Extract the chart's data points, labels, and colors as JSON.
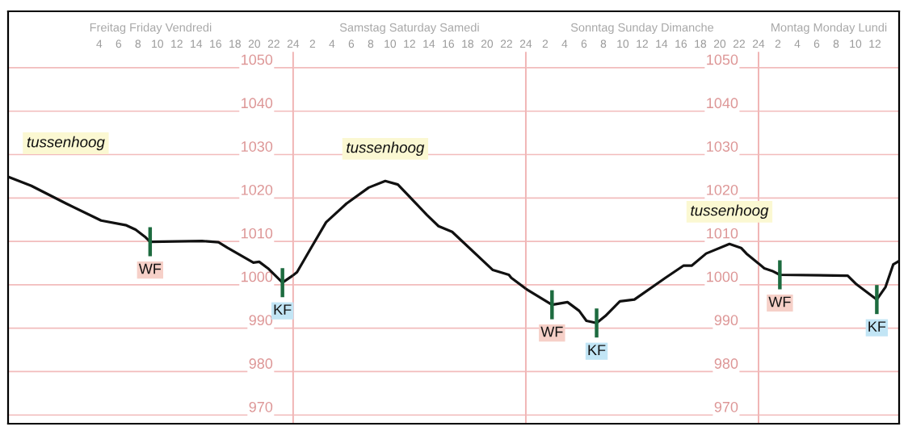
{
  "chart_data": [
    {
      "type": "line",
      "title": "Freitag Friday Vendredi",
      "xlim": [
        -5.4,
        24
      ],
      "xticks": [
        4,
        6,
        8,
        10,
        12,
        14,
        16,
        18,
        20,
        22,
        24
      ],
      "ylim": [
        968,
        1063
      ],
      "yticks": [
        970,
        980,
        990,
        1000,
        1010,
        1020,
        1030,
        1040,
        1050
      ],
      "grid": "y",
      "marker": "none",
      "line_style": "solid",
      "series": [
        {
          "color": "#111111",
          "x": [
            -5.3,
            -3.0,
            0.6,
            4.2,
            6.8,
            7.75,
            8.7,
            9.25,
            14.6,
            16.3,
            17.25,
            19.9,
            20.5,
            21.4,
            22.9,
            24
          ],
          "values": [
            1024.8,
            1022.8,
            1018.7,
            1014.8,
            1013.7,
            1012.7,
            1011.1,
            1009.9,
            1010.1,
            1009.8,
            1008.5,
            1005.1,
            1005.3,
            1003.8,
            1000.5,
            1002.2
          ]
        }
      ],
      "annotations": [
        "tussenhoog",
        {
          "text": "WF",
          "x": 9.25,
          "y": 1009.9
        },
        {
          "text": "KF",
          "x": 22.9,
          "y": 1000.5
        }
      ]
    },
    {
      "type": "line",
      "title": "Samstag Saturday Samedi",
      "xlim": [
        0,
        24
      ],
      "xticks": [
        2,
        4,
        6,
        8,
        10,
        12,
        14,
        16,
        18,
        20,
        22,
        24
      ],
      "ylim": [
        968,
        1063
      ],
      "yticks": [
        970,
        980,
        990,
        1000,
        1010,
        1020,
        1030,
        1040,
        1050
      ],
      "tick_labels": "x",
      "grid": "y",
      "marker": "none",
      "line_style": "solid",
      "series": [
        {
          "color": "#111111",
          "x": [
            0,
            0.4,
            1.75,
            3.4,
            5.5,
            7.8,
            9.5,
            10.8,
            13.8,
            15.0,
            16.4,
            20.6,
            22.25,
            22.5,
            24
          ],
          "values": [
            1002.2,
            1002.9,
            1008.1,
            1014.4,
            1018.7,
            1022.4,
            1023.9,
            1023.1,
            1016.1,
            1013.5,
            1012.2,
            1003.4,
            1002.3,
            1001.6,
            999.1
          ]
        }
      ],
      "annotations": [
        {
          "text": "tussenhoog",
          "x": 9.5,
          "y": 1023.9
        }
      ]
    },
    {
      "type": "line",
      "title": "Sonntag Sunday Dimanche",
      "xlim": [
        0,
        24
      ],
      "xticks": [
        2,
        4,
        6,
        8,
        10,
        12,
        14,
        16,
        18,
        20,
        22,
        24
      ],
      "ylim": [
        968,
        1063
      ],
      "yticks": [
        970,
        980,
        990,
        1000,
        1010,
        1020,
        1030,
        1040,
        1050
      ],
      "grid": "y",
      "marker": "none",
      "line_style": "solid",
      "series": [
        {
          "color": "#111111",
          "x": [
            0,
            0.2,
            2.7,
            4.3,
            5.5,
            6.25,
            7.3,
            8.2,
            9.7,
            11.2,
            14.4,
            16.25,
            17.1,
            18.6,
            21.0,
            22.2,
            22.75,
            24
          ],
          "values": [
            999.1,
            998.8,
            995.4,
            996.0,
            994.0,
            991.7,
            991.2,
            992.8,
            996.2,
            996.6,
            1001.6,
            1004.4,
            1004.4,
            1007.2,
            1009.4,
            1008.5,
            1007.2,
            1004.9
          ]
        }
      ],
      "annotations": [
        {
          "text": "WF",
          "x": 2.7,
          "y": 995.4
        },
        {
          "text": "KF",
          "x": 7.3,
          "y": 991.2
        },
        {
          "text": "tussenhoog",
          "x": 21.0,
          "y": 1009.4
        }
      ]
    },
    {
      "type": "line",
      "title": "Montag Monday Lundi",
      "xlim": [
        0,
        14.5
      ],
      "xticks": [
        2,
        4,
        6,
        8,
        10,
        12
      ],
      "ylim": [
        968,
        1063
      ],
      "yticks": [
        970,
        980,
        990,
        1000,
        1010,
        1020,
        1030,
        1040,
        1050
      ],
      "tick_labels": "x",
      "grid": "y",
      "marker": "none",
      "line_style": "solid",
      "series": [
        {
          "color": "#111111",
          "x": [
            0,
            0.6,
            1.4,
            2.2,
            9.2,
            10.1,
            12.2,
            13.1,
            13.9,
            14.5
          ],
          "values": [
            1004.9,
            1003.8,
            1003.2,
            1002.3,
            1002.1,
            1000.1,
            996.6,
            999.5,
            1004.7,
            1005.5
          ]
        }
      ],
      "annotations": [
        {
          "text": "WF",
          "x": 2.2,
          "y": 1002.3
        },
        {
          "text": "KF",
          "x": 12.2,
          "y": 996.6
        }
      ]
    }
  ]
}
